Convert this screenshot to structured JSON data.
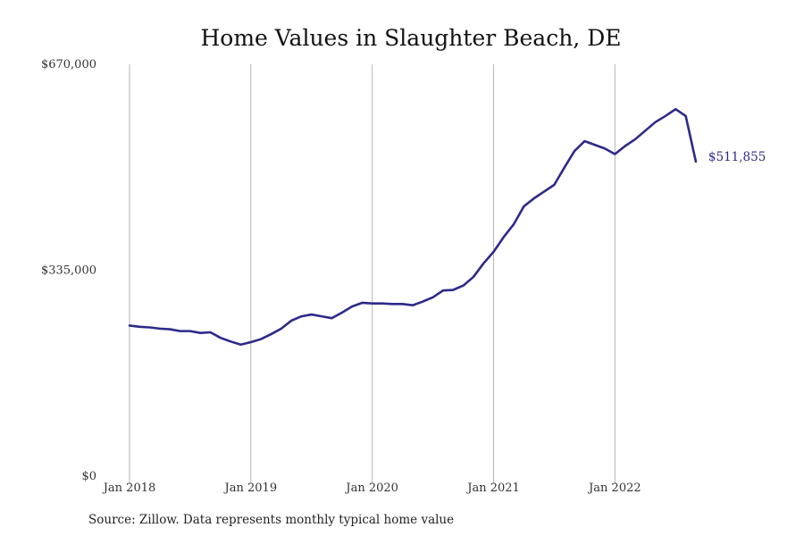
{
  "chart_data": {
    "type": "line",
    "title": "Home Values in Slaughter Beach, DE",
    "source": "Source: Zillow. Data represents monthly typical home value",
    "xlabel": "",
    "ylabel": "",
    "x_start": "2018-01",
    "x_range": [
      "2018-01",
      "2022-12"
    ],
    "x_ticks": [
      "Jan 2018",
      "Jan 2019",
      "Jan 2020",
      "Jan 2021",
      "Jan 2022"
    ],
    "y_ticks": [
      "$0",
      "$335,000",
      "$670,000"
    ],
    "ylim": [
      0,
      670000
    ],
    "grid": "vertical",
    "line_color": "#2e2a8a",
    "end_label": "$511,855",
    "series": [
      {
        "values": [
          245000,
          243000,
          242000,
          240000,
          239000,
          236000,
          236000,
          233000,
          234000,
          225000,
          219000,
          214000,
          218000,
          223000,
          231000,
          240000,
          253000,
          260000,
          263000,
          260000,
          257000,
          266000,
          276000,
          282000,
          281000,
          281000,
          280000,
          280000,
          278000,
          284000,
          291000,
          302000,
          303000,
          310000,
          324000,
          346000,
          365000,
          389000,
          410000,
          439000,
          452000,
          463000,
          474000,
          502000,
          529000,
          545000,
          539000,
          533000,
          524000,
          537000,
          548000,
          562000,
          576000,
          586000,
          597000,
          586000,
          511855
        ]
      }
    ]
  }
}
